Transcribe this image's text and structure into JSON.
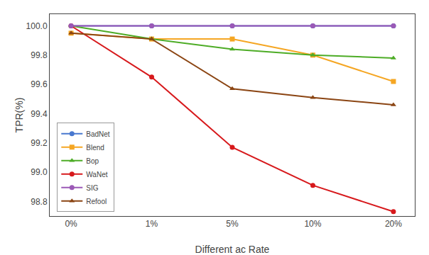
{
  "chart_data": {
    "type": "line",
    "categories": [
      "0%",
      "1%",
      "5%",
      "10%",
      "20%"
    ],
    "series": [
      {
        "name": "BadNet",
        "color": "#4878cf",
        "marker": "circle",
        "values": [
          100.0,
          100.0,
          100.0,
          100.0,
          100.0
        ]
      },
      {
        "name": "Blend",
        "color": "#f5a623",
        "marker": "square",
        "values": [
          99.95,
          99.91,
          99.91,
          99.8,
          99.62
        ]
      },
      {
        "name": "Bop",
        "color": "#4dac26",
        "marker": "triangle-up",
        "values": [
          100.0,
          99.91,
          99.84,
          99.8,
          99.78
        ]
      },
      {
        "name": "WaNet",
        "color": "#d7191c",
        "marker": "circle",
        "values": [
          100.0,
          99.65,
          99.17,
          98.91,
          98.73
        ]
      },
      {
        "name": "SIG",
        "color": "#9b59b6",
        "marker": "circle",
        "values": [
          100.0,
          100.0,
          100.0,
          100.0,
          100.0
        ]
      },
      {
        "name": "Refool",
        "color": "#8B4513",
        "marker": "triangle-up",
        "values": [
          99.95,
          99.91,
          99.57,
          99.51,
          99.46
        ]
      }
    ],
    "xlabel": "Different ac Rate",
    "ylabel": "TPR(%)",
    "ylim": [
      98.7,
      100.08
    ],
    "yticks": [
      98.8,
      {
        "value": 99,
        "label": "99.0"
      },
      99.2,
      99.4,
      99.6,
      99.8,
      {
        "value": 100,
        "label": "100.0"
      }
    ],
    "grid": false,
    "legend": "lower left"
  }
}
